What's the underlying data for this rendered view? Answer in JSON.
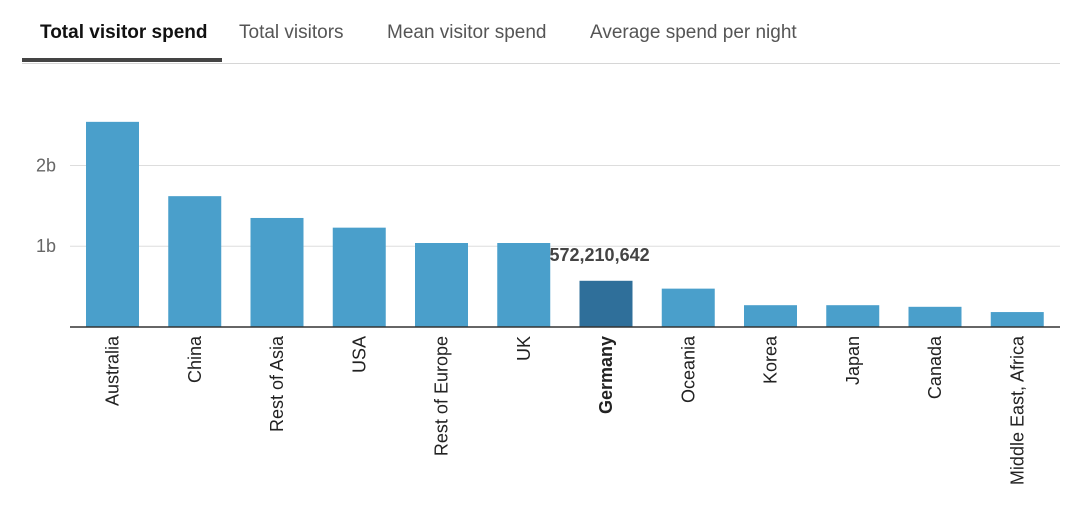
{
  "tabs": [
    {
      "label": "Total visitor spend",
      "active": true
    },
    {
      "label": "Total visitors",
      "active": false
    },
    {
      "label": "Mean visitor spend",
      "active": false
    },
    {
      "label": "Average spend per night",
      "active": false
    }
  ],
  "colors": {
    "bar": "#4a9fcb",
    "bar_highlight": "#2f6f9a",
    "grid": "#dddddd",
    "axis": "#333333"
  },
  "chart_data": {
    "type": "bar",
    "categories": [
      "Australia",
      "China",
      "Rest of Asia",
      "USA",
      "Rest of Europe",
      "UK",
      "Germany",
      "Oceania",
      "Korea",
      "Japan",
      "Canada",
      "Middle East, Africa"
    ],
    "values": [
      2540000000,
      1620000000,
      1350000000,
      1230000000,
      1040000000,
      1040000000,
      572210642,
      475000000,
      270000000,
      270000000,
      250000000,
      185000000
    ],
    "highlight_index": 6,
    "tooltip": "572,210,642",
    "yticks": [
      {
        "value": 1000000000,
        "label": "1b"
      },
      {
        "value": 2000000000,
        "label": "2b"
      }
    ],
    "ylim": [
      0,
      2600000000
    ],
    "grid": true
  }
}
